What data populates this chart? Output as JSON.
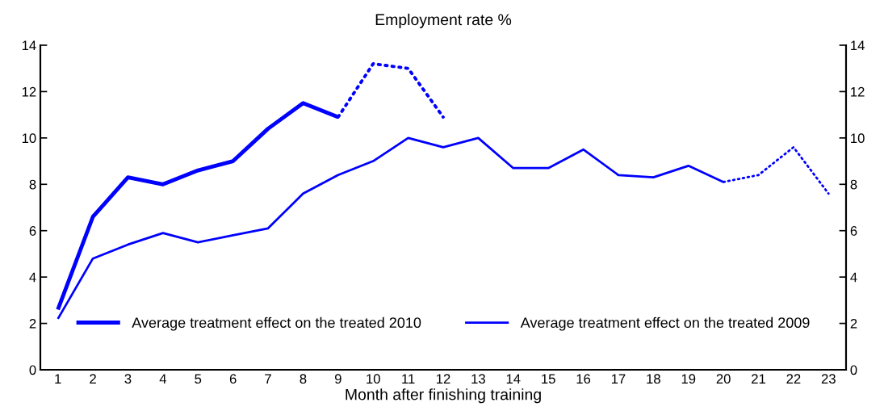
{
  "chart_data": {
    "type": "line",
    "title": "Employment rate %",
    "xlabel": "Month after finishing training",
    "categories": [
      "1",
      "2",
      "3",
      "4",
      "5",
      "6",
      "7",
      "8",
      "9",
      "10",
      "11",
      "12",
      "13",
      "14",
      "15",
      "16",
      "17",
      "18",
      "19",
      "20",
      "21",
      "22",
      "23"
    ],
    "series": [
      {
        "name": "Average treatment effect on the treated 2010",
        "color": "#0000ff",
        "line_style": "solid",
        "values": [
          2.6,
          6.6,
          8.3,
          8.0,
          8.6,
          9.0,
          10.4,
          11.5,
          10.9,
          null,
          null,
          null,
          null,
          null,
          null,
          null,
          null,
          null,
          null,
          null,
          null,
          null,
          null
        ]
      },
      {
        "color": "#0000ff",
        "line_style": "dotted",
        "values": [
          null,
          null,
          null,
          null,
          null,
          null,
          null,
          null,
          10.9,
          13.2,
          13.0,
          10.9,
          null,
          null,
          null,
          null,
          null,
          null,
          null,
          null,
          null,
          null,
          null
        ]
      },
      {
        "name": "Average treatment effect on the treated 2009",
        "color": "#0000fe",
        "line_style": "solid",
        "values": [
          2.2,
          4.8,
          5.4,
          5.9,
          5.5,
          5.8,
          6.1,
          7.6,
          8.4,
          9.0,
          10.0,
          9.6,
          10.0,
          8.7,
          8.7,
          9.5,
          8.4,
          8.3,
          8.8,
          8.1,
          null,
          null,
          null
        ]
      },
      {
        "color": "#0000fe",
        "line_style": "dotted",
        "values": [
          null,
          null,
          null,
          null,
          null,
          null,
          null,
          null,
          null,
          null,
          null,
          null,
          null,
          null,
          null,
          null,
          null,
          null,
          null,
          8.1,
          8.4,
          9.6,
          7.6
        ]
      }
    ],
    "ylim": [
      0,
      14
    ],
    "yticks": [
      0,
      2,
      4,
      6,
      8,
      10,
      12,
      14
    ],
    "y2lim": [
      0,
      14
    ],
    "y2ticks": [
      0,
      2,
      4,
      6,
      8,
      10,
      12,
      14
    ],
    "legend": "bottom",
    "grid": false,
    "marker": "none"
  }
}
